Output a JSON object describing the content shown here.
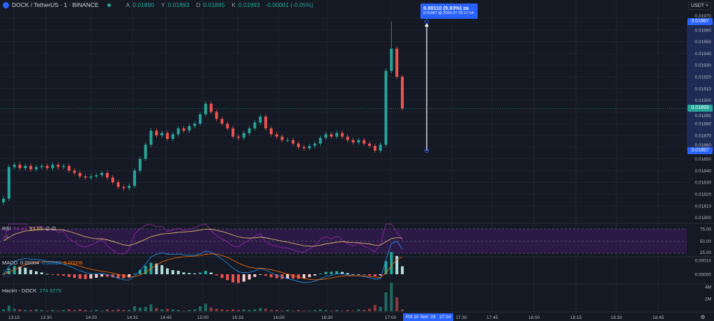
{
  "header": {
    "symbol": "DOCK / TetherUS · 1 · BINANCE",
    "ohlc": [
      {
        "k": "A",
        "v": "0.01890"
      },
      {
        "k": "Y",
        "v": "0.01893"
      },
      {
        "k": "D",
        "v": "0.01885"
      },
      {
        "k": "K",
        "v": "0.01893"
      }
    ],
    "change": "-0.00001 (-0.05%)"
  },
  "currency": "USDT",
  "colors": {
    "up": "#26a69a",
    "down": "#ef5350",
    "accent": "#2962ff",
    "rsi": "#9c27b0",
    "rsi_ma": "#f0c36d",
    "macd": "#2196f3",
    "signal": "#ff6d00"
  },
  "measure": {
    "line1": "0.00110 (5.93%) za",
    "line2": "0.01967 @ 2023-07-10  17:14",
    "from": 0.01857,
    "to": 0.01967
  },
  "price_labels": {
    "high": "0.01967",
    "last": "0.01893",
    "low": "0.01857"
  },
  "time_highlight": "Pzt 10 Tem '23   17:14",
  "rsi": {
    "name": "RSI",
    "value": "54.83",
    "ma": "53.65",
    "extra": "∅ ∅",
    "levels": [
      "75.00",
      "50.00",
      "25.00"
    ]
  },
  "macd": {
    "name": "MACD",
    "hist": "0.00004",
    "macd": "0.00010",
    "signal": "0.00006",
    "levels": [
      "0.00010",
      "0.00000"
    ]
  },
  "volume": {
    "name": "Hacim - DOCK",
    "value": "274.927K",
    "levels": [
      "4M",
      "2M"
    ]
  },
  "chart_data": {
    "type": "candlestick",
    "price_ticks": [
      "0.01970",
      "0.01960",
      "0.01950",
      "0.01940",
      "0.01930",
      "0.01920",
      "0.01910",
      "0.01900",
      "0.01890",
      "0.01880",
      "0.01870",
      "0.01860",
      "0.01850",
      "0.01840",
      "0.01830",
      "0.01820",
      "0.01810",
      "0.01800"
    ],
    "time_ticks": [
      "13:15",
      "13:30",
      "14:00",
      "14:31",
      "14:45",
      "15:00",
      "15:33",
      "16:00",
      "16:30",
      "17:00",
      "17:30",
      "17:45",
      "18:00",
      "18:15",
      "18:30",
      "18:45"
    ],
    "closes": [
      0.01816,
      0.01843,
      0.01845,
      0.01842,
      0.01844,
      0.01841,
      0.01843,
      0.01844,
      0.01842,
      0.01845,
      0.01843,
      0.01844,
      0.0184,
      0.01838,
      0.01835,
      0.01834,
      0.01835,
      0.01836,
      0.01838,
      0.01834,
      0.0183,
      0.01826,
      0.01825,
      0.01827,
      0.0184,
      0.0185,
      0.01862,
      0.01874,
      0.0187,
      0.01872,
      0.01867,
      0.01871,
      0.01876,
      0.01874,
      0.01878,
      0.0188,
      0.01888,
      0.01897,
      0.0189,
      0.01884,
      0.0188,
      0.01876,
      0.01869,
      0.01868,
      0.01872,
      0.01876,
      0.01881,
      0.01886,
      0.01876,
      0.01871,
      0.01869,
      0.01866,
      0.01866,
      0.01863,
      0.0186,
      0.01859,
      0.01861,
      0.01863,
      0.01868,
      0.01871,
      0.01869,
      0.01872,
      0.01869,
      0.01866,
      0.01864,
      0.01866,
      0.01863,
      0.01861,
      0.01857,
      0.01862,
      0.01925,
      0.01944,
      0.0192,
      0.01893
    ],
    "spike_high": 0.01967,
    "volumes_m": [
      0.3,
      0.9,
      0.4,
      0.3,
      0.2,
      0.2,
      0.3,
      0.2,
      0.1,
      0.2,
      0.1,
      0.2,
      0.3,
      0.2,
      0.3,
      0.2,
      0.1,
      0.2,
      0.1,
      0.3,
      0.2,
      0.3,
      0.2,
      0.2,
      0.8,
      0.6,
      0.7,
      1.1,
      0.5,
      0.3,
      0.4,
      0.3,
      0.2,
      0.1,
      0.2,
      0.3,
      0.8,
      1.2,
      0.6,
      0.4,
      0.3,
      0.2,
      0.3,
      0.2,
      0.3,
      0.2,
      0.3,
      0.5,
      0.4,
      0.2,
      0.2,
      0.1,
      0.2,
      0.1,
      0.2,
      0.1,
      0.1,
      0.2,
      0.3,
      0.2,
      0.1,
      0.2,
      0.1,
      0.2,
      0.1,
      0.3,
      0.2,
      0.4,
      1.0,
      0.7,
      3.0,
      4.5,
      2.2,
      0.3
    ]
  }
}
